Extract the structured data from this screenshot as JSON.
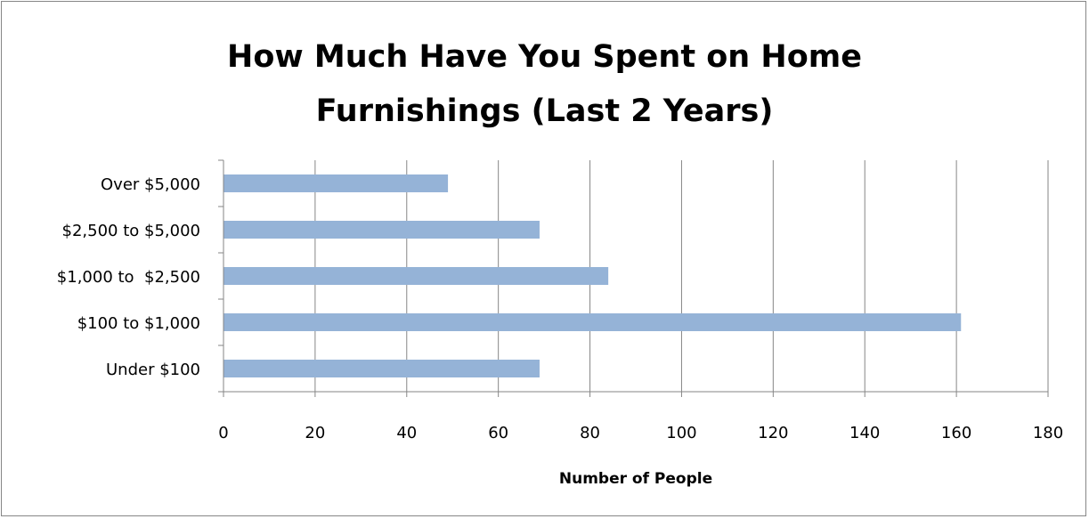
{
  "chart_data": {
    "type": "bar",
    "orientation": "horizontal",
    "title": "How Much Have You Spent on Home Furnishings (Last 2 Years)",
    "title_lines": [
      "How Much Have You Spent on Home",
      "Furnishings (Last 2 Years)"
    ],
    "categories": [
      "Over $5,000",
      "$2,500 to $5,000",
      "$1,000 to  $2,500",
      "$100 to $1,000",
      "Under $100"
    ],
    "values": [
      49,
      69,
      84,
      161,
      69
    ],
    "xlabel": "Number of People",
    "ylabel": "",
    "xlim": [
      0,
      180
    ],
    "xticks": [
      "0",
      "20",
      "40",
      "60",
      "80",
      "100",
      "120",
      "140",
      "160",
      "180"
    ],
    "grid": true,
    "legend": "none",
    "bar_color": "#95B3D7",
    "grid_color": "#868686"
  }
}
